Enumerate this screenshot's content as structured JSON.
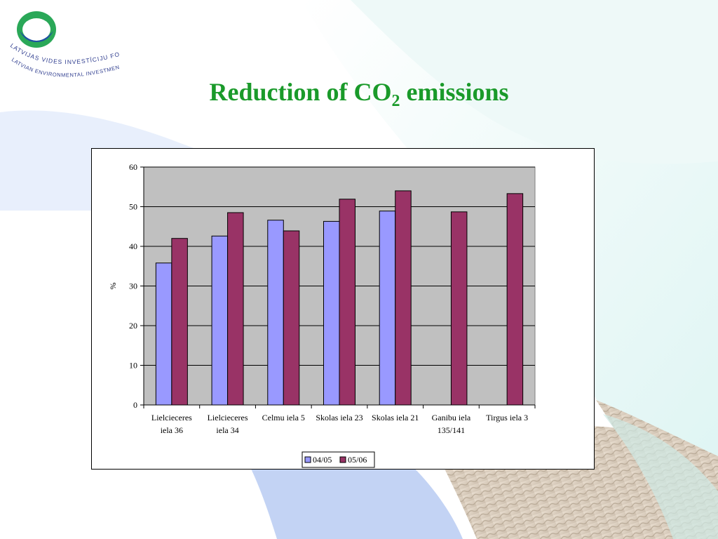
{
  "slide": {
    "title_main": "Reduction of CO",
    "title_sub": "2",
    "title_end": " emissions",
    "colors": {
      "title": "#1a9a2a",
      "bg_blue": "#c7d6f5",
      "bg_teal": "#e3f6f4"
    }
  },
  "logo": {
    "org_name_lv": "LATVIJAS VIDES INVESTĪCIJU FONDS",
    "org_name_en": "LATVIAN ENVIRONMENTAL INVESTMENT FUND",
    "icon": "ring-logo-icon"
  },
  "chart_data": {
    "type": "bar",
    "title": "",
    "xlabel": "",
    "ylabel": "%",
    "ylim": [
      0,
      60
    ],
    "yticks": [
      0,
      10,
      20,
      30,
      40,
      50,
      60
    ],
    "grid": true,
    "plot_background": "#c0c0c0",
    "legend_position": "bottom",
    "categories": [
      [
        "Lielcieceres",
        "iela 36"
      ],
      [
        "Lielcieceres",
        "iela 34"
      ],
      [
        "Celmu iela 5"
      ],
      [
        "Skolas iela 23"
      ],
      [
        "Skolas iela 21"
      ],
      [
        "Ganibu iela",
        "135/141"
      ],
      [
        "Tirgus iela 3"
      ]
    ],
    "series": [
      {
        "name": "04/05",
        "color": "#9999ff",
        "values": [
          35.8,
          42.6,
          46.6,
          46.3,
          48.9,
          null,
          null
        ]
      },
      {
        "name": "05/06",
        "color": "#993366",
        "values": [
          42.0,
          48.5,
          43.9,
          51.9,
          54.0,
          48.7,
          53.3
        ]
      }
    ]
  }
}
